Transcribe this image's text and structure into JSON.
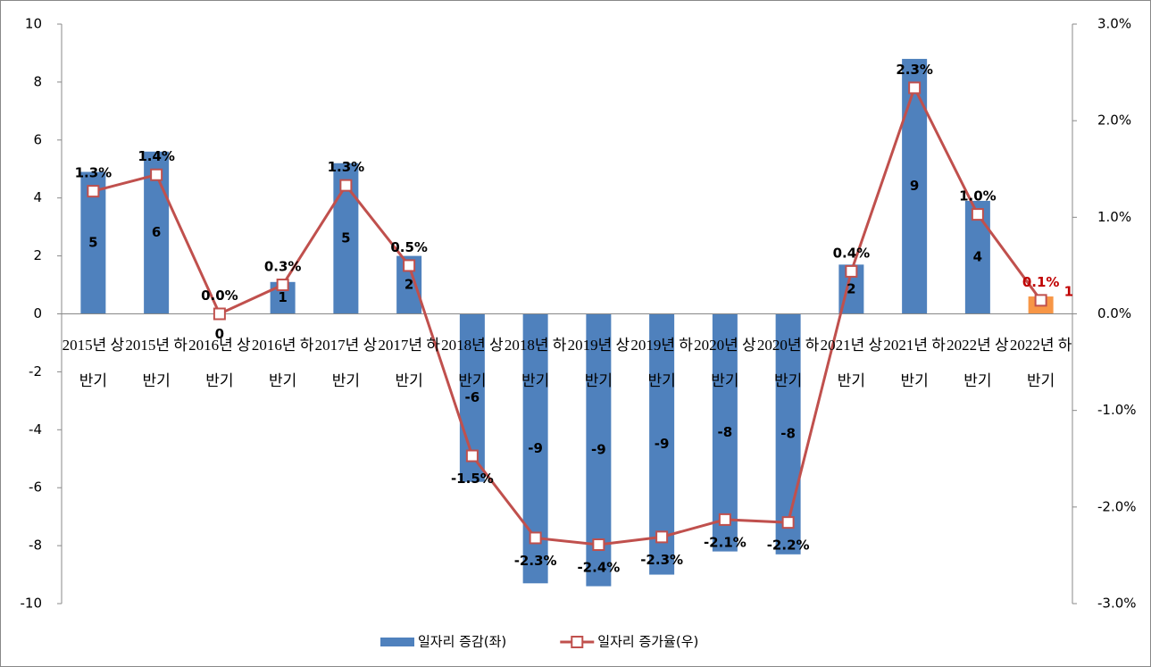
{
  "chart_data": {
    "type": "bar_line",
    "categories": [
      "2015년 상반기",
      "2015년 하반기",
      "2016년 상반기",
      "2016년 하반기",
      "2017년 상반기",
      "2017년 하반기",
      "2018년 상반기",
      "2018년 하반기",
      "2019년 상반기",
      "2019년 하반기",
      "2020년 상반기",
      "2020년 하반기",
      "2021년 상반기",
      "2021년 하반기",
      "2022년 상반기",
      "2022년 하반기"
    ],
    "series": [
      {
        "name": "일자리 증감(좌)",
        "type": "bar",
        "color": "#4f81bd",
        "colors": [
          "#4f81bd",
          "#4f81bd",
          "#4f81bd",
          "#4f81bd",
          "#4f81bd",
          "#4f81bd",
          "#4f81bd",
          "#4f81bd",
          "#4f81bd",
          "#4f81bd",
          "#4f81bd",
          "#4f81bd",
          "#4f81bd",
          "#4f81bd",
          "#4f81bd",
          "#f79646"
        ],
        "values": [
          4.9,
          5.6,
          0,
          1.1,
          5.2,
          2.0,
          -5.8,
          -9.3,
          -9.4,
          -9.0,
          -8.2,
          -8.3,
          1.7,
          8.8,
          3.9,
          0.6
        ],
        "value_labels": [
          "5",
          "6",
          "0",
          "1",
          "5",
          "2",
          "-6",
          "-9",
          "-9",
          "-9",
          "-8",
          "-8",
          "2",
          "9",
          "4",
          "1"
        ],
        "value_label_colors": [
          "#000000",
          "#000000",
          "#000000",
          "#000000",
          "#000000",
          "#000000",
          "#000000",
          "#000000",
          "#000000",
          "#000000",
          "#000000",
          "#000000",
          "#000000",
          "#000000",
          "#000000",
          "#c00000"
        ]
      },
      {
        "name": "일자리 증가율(우)",
        "type": "line",
        "axis": "y2",
        "color": "#c0504d",
        "values": [
          1.27,
          1.44,
          0.0,
          0.3,
          1.33,
          0.5,
          -1.47,
          -2.32,
          -2.39,
          -2.31,
          -2.13,
          -2.16,
          0.44,
          2.34,
          1.03,
          0.14
        ],
        "value_labels": [
          "1.3%",
          "1.4%",
          "0.0%",
          "0.3%",
          "1.3%",
          "0.5%",
          "-1.5%",
          "-2.3%",
          "-2.4%",
          "-2.3%",
          "-2.1%",
          "-2.2%",
          "0.4%",
          "2.3%",
          "1.0%",
          "0.1%"
        ],
        "value_label_colors": [
          "#000000",
          "#000000",
          "#000000",
          "#000000",
          "#000000",
          "#000000",
          "#000000",
          "#000000",
          "#000000",
          "#000000",
          "#000000",
          "#000000",
          "#000000",
          "#000000",
          "#000000",
          "#c00000"
        ]
      }
    ],
    "ylim": [
      -10,
      10
    ],
    "yticks": [
      -10,
      -8,
      -6,
      -4,
      -2,
      0,
      2,
      4,
      6,
      8,
      10
    ],
    "y2lim": [
      -3,
      3
    ],
    "y2ticks": [
      {
        "value": -3,
        "label": "-3.0%"
      },
      {
        "value": -2,
        "label": "-2.0%"
      },
      {
        "value": -1,
        "label": "-1.0%"
      },
      {
        "value": 0,
        "label": "0.0%"
      },
      {
        "value": 1,
        "label": "1.0%"
      },
      {
        "value": 2,
        "label": "2.0%"
      },
      {
        "value": 3,
        "label": "3.0%"
      }
    ],
    "legend": "bottom"
  }
}
